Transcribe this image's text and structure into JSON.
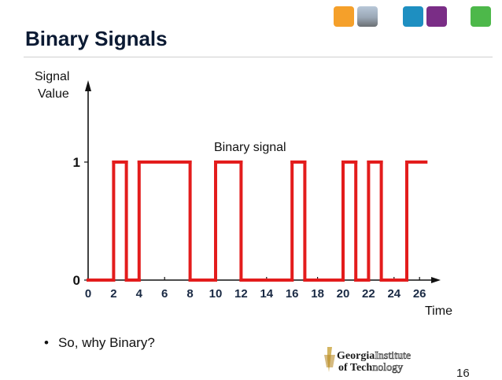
{
  "slide": {
    "title": "Binary Signals",
    "bullet": "So, why Binary?",
    "page_number": "16"
  },
  "logo": {
    "line1_bold": "Georgia",
    "line1_light": "Institute",
    "line2_bold": "of Tech",
    "line2_light": "nology"
  },
  "header_tiles": [
    "orange-tile",
    "photo-tile",
    "blue-tile",
    "purple-tile",
    "green-tile"
  ],
  "colors": {
    "signal": "#e31c1c",
    "axis": "#111111",
    "title": "#0b1a33"
  },
  "chart_data": {
    "type": "line",
    "title": "",
    "xlabel": "Time",
    "ylabel": "Signal Value",
    "annotation": "Binary signal",
    "x_ticks": [
      0,
      2,
      4,
      6,
      8,
      10,
      12,
      14,
      16,
      18,
      20,
      22,
      24,
      26
    ],
    "y_ticks": [
      0,
      1
    ],
    "xlim": [
      0,
      27.5
    ],
    "ylim": [
      0,
      1
    ],
    "grid": false,
    "series": [
      {
        "segments": [
          {
            "x": [
              0,
              2
            ],
            "y": 0
          },
          {
            "x": [
              2,
              3
            ],
            "y": 1
          },
          {
            "x": [
              3,
              4
            ],
            "y": 0
          },
          {
            "x": [
              4,
              8
            ],
            "y": 1
          },
          {
            "x": [
              8,
              10
            ],
            "y": 0
          },
          {
            "x": [
              10,
              12
            ],
            "y": 1
          },
          {
            "x": [
              12,
              16
            ],
            "y": 0
          },
          {
            "x": [
              16,
              17
            ],
            "y": 1
          },
          {
            "x": [
              17,
              20
            ],
            "y": 0
          },
          {
            "x": [
              20,
              21
            ],
            "y": 1
          },
          {
            "x": [
              21,
              22
            ],
            "y": 0
          },
          {
            "x": [
              22,
              23
            ],
            "y": 1
          },
          {
            "x": [
              23,
              25
            ],
            "y": 0
          },
          {
            "x": [
              25,
              26.5
            ],
            "y": 1
          }
        ]
      }
    ]
  }
}
